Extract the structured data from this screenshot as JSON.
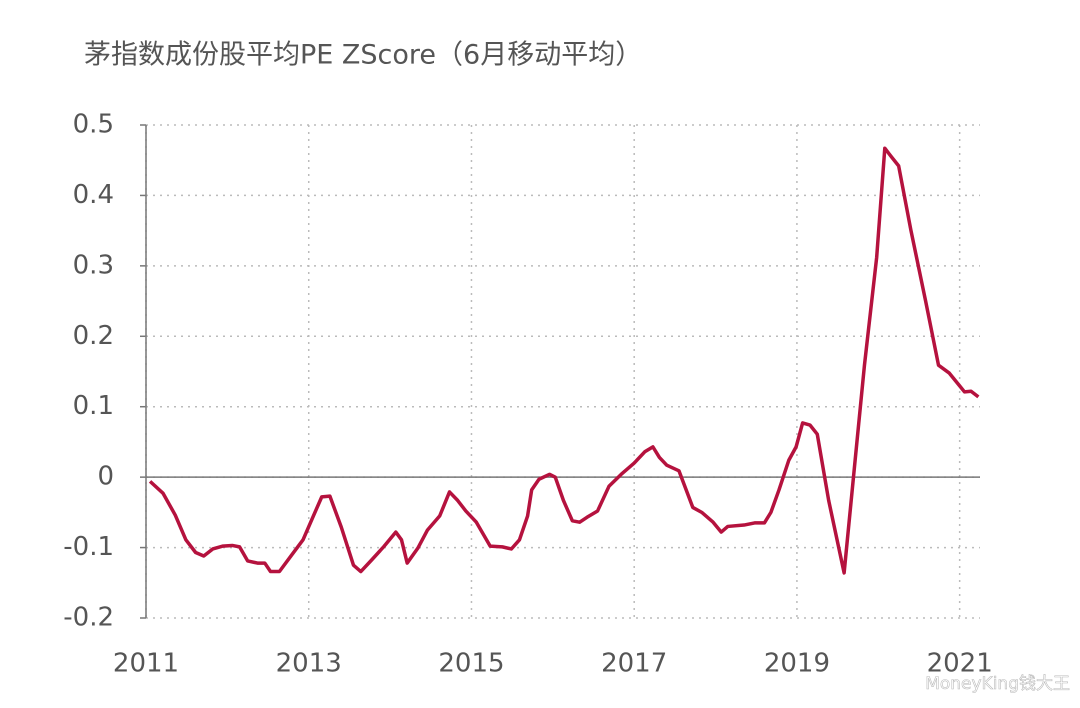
{
  "chart_data": {
    "type": "line",
    "title": "茅指数成份股平均PE ZScore（6月移动平均）",
    "watermark": "MoneyKing钱大王",
    "x": [
      2011.05,
      2011.21,
      2011.36,
      2011.49,
      2011.61,
      2011.71,
      2011.82,
      2011.94,
      2012.06,
      2012.15,
      2012.25,
      2012.37,
      2012.46,
      2012.53,
      2012.64,
      2012.8,
      2012.93,
      2013.05,
      2013.16,
      2013.26,
      2013.4,
      2013.55,
      2013.64,
      2013.77,
      2013.92,
      2014.07,
      2014.14,
      2014.21,
      2014.34,
      2014.46,
      2014.61,
      2014.73,
      2014.83,
      2014.93,
      2015.06,
      2015.23,
      2015.38,
      2015.49,
      2015.59,
      2015.69,
      2015.74,
      2015.83,
      2015.96,
      2016.03,
      2016.13,
      2016.24,
      2016.33,
      2016.42,
      2016.55,
      2016.69,
      2016.84,
      2017.0,
      2017.13,
      2017.23,
      2017.31,
      2017.4,
      2017.55,
      2017.72,
      2017.83,
      2017.97,
      2018.07,
      2018.15,
      2018.35,
      2018.48,
      2018.6,
      2018.68,
      2018.78,
      2018.9,
      2018.99,
      2019.07,
      2019.16,
      2019.25,
      2019.39,
      2019.58,
      2019.7,
      2019.83,
      2019.98,
      2020.08,
      2020.16,
      2020.25,
      2020.4,
      2020.58,
      2020.74,
      2020.87,
      2020.99,
      2021.06,
      2021.14,
      2021.23
    ],
    "series": [
      {
        "color": "#b5123e",
        "values": [
          -0.006,
          -0.023,
          -0.054,
          -0.089,
          -0.107,
          -0.112,
          -0.102,
          -0.098,
          -0.097,
          -0.099,
          -0.119,
          -0.122,
          -0.122,
          -0.134,
          -0.134,
          -0.109,
          -0.089,
          -0.057,
          -0.028,
          -0.027,
          -0.071,
          -0.125,
          -0.134,
          -0.118,
          -0.099,
          -0.078,
          -0.089,
          -0.122,
          -0.101,
          -0.075,
          -0.055,
          -0.021,
          -0.033,
          -0.048,
          -0.064,
          -0.098,
          -0.099,
          -0.102,
          -0.089,
          -0.055,
          -0.018,
          -0.003,
          0.004,
          0,
          -0.033,
          -0.062,
          -0.064,
          -0.057,
          -0.048,
          -0.013,
          0.004,
          0.02,
          0.036,
          0.043,
          0.028,
          0.017,
          0.009,
          -0.043,
          -0.05,
          -0.064,
          -0.078,
          -0.07,
          -0.068,
          -0.065,
          -0.065,
          -0.05,
          -0.018,
          0.024,
          0.043,
          0.077,
          0.074,
          0.061,
          -0.033,
          -0.136,
          0.006,
          0.159,
          0.312,
          0.467,
          0.455,
          0.442,
          0.351,
          0.251,
          0.159,
          0.148,
          0.131,
          0.121,
          0.122,
          0.114
        ]
      }
    ],
    "xlim": [
      2011,
      2021.25
    ],
    "xticks": [
      2011,
      2013,
      2015,
      2017,
      2019,
      2021
    ],
    "ylim": [
      -0.2,
      0.5
    ],
    "yticks": [
      -0.2,
      -0.1,
      0,
      0.1,
      0.2,
      0.3,
      0.4,
      0.5
    ],
    "grid": true
  }
}
